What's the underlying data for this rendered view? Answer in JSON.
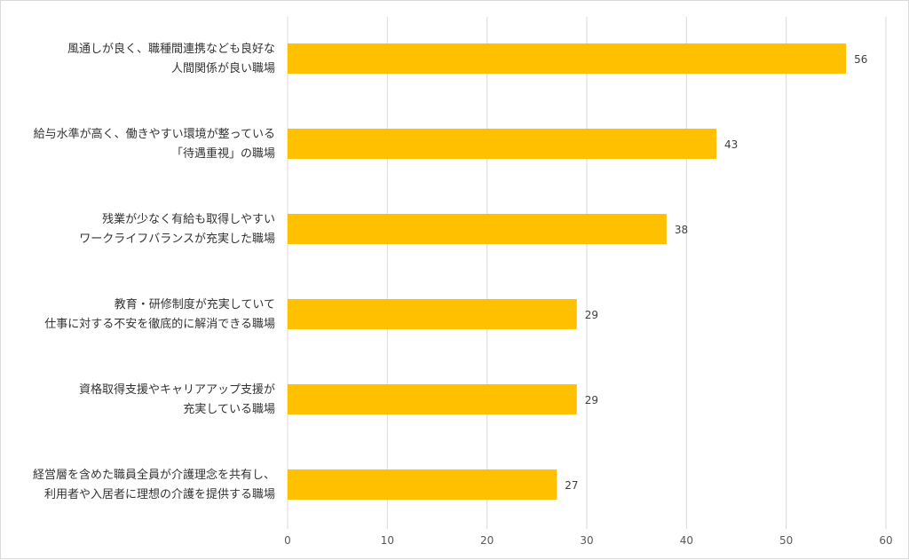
{
  "chart_data": {
    "type": "bar",
    "orientation": "horizontal",
    "categories": [
      [
        "風通しが良く、職種間連携なども良好な",
        "人間関係が良い職場"
      ],
      [
        "給与水準が高く、働きやすい環境が整っている",
        "「待遇重視」の職場"
      ],
      [
        "残業が少なく有給も取得しやすい",
        "ワークライフバランスが充実した職場"
      ],
      [
        "教育・研修制度が充実していて",
        "仕事に対する不安を徹底的に解消できる職場"
      ],
      [
        "資格取得支援やキャリアアップ支援が",
        "充実している職場"
      ],
      [
        "経営層を含めた職員全員が介護理念を共有し、",
        "利用者や入居者に理想の介護を提供する職場"
      ]
    ],
    "values": [
      56,
      43,
      38,
      29,
      29,
      27
    ],
    "xlim": [
      0,
      60
    ],
    "xticks": [
      0,
      10,
      20,
      30,
      40,
      50,
      60
    ],
    "grid": "vertical",
    "data_labels": true,
    "bar_color": "#ffc000",
    "grid_color": "#d9d9d9",
    "legend": "none",
    "title": "",
    "xlabel": "",
    "ylabel": ""
  }
}
